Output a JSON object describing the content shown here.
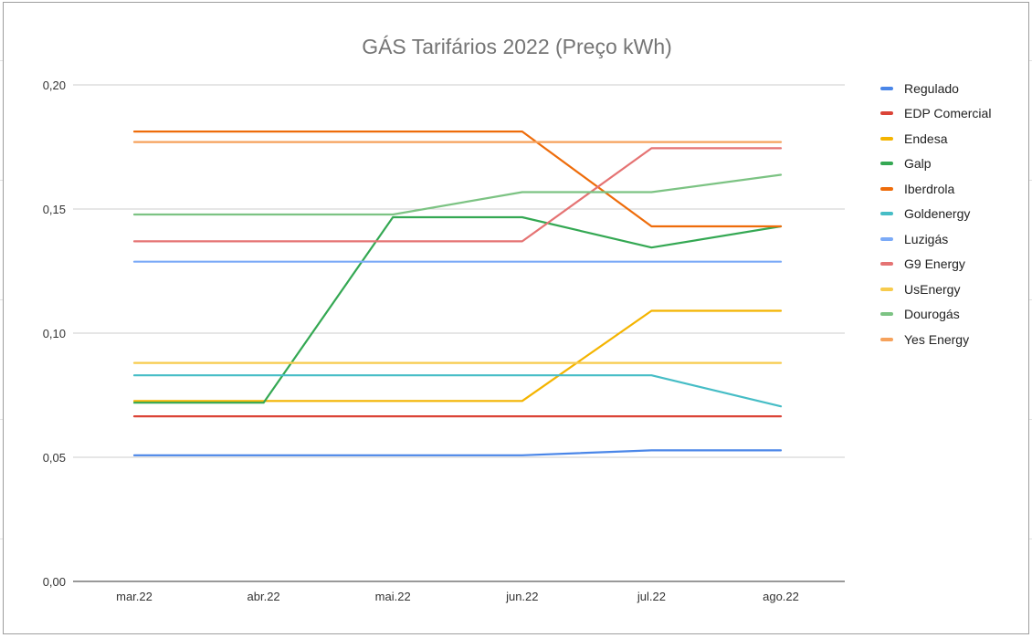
{
  "chart_data": {
    "type": "line",
    "title": "GÁS Tarifários 2022 (Preço kWh)",
    "xlabel": "",
    "ylabel": "",
    "categories": [
      "mar.22",
      "abr.22",
      "mai.22",
      "jun.22",
      "jul.22",
      "ago.22"
    ],
    "ylim": [
      0,
      0.2
    ],
    "yticks": [
      {
        "value": 0.0,
        "label": "0,00"
      },
      {
        "value": 0.05,
        "label": "0,05"
      },
      {
        "value": 0.1,
        "label": "0,10"
      },
      {
        "value": 0.15,
        "label": "0,15"
      },
      {
        "value": 0.2,
        "label": "0,20"
      }
    ],
    "grid": true,
    "legend_position": "right",
    "series": [
      {
        "name": "Regulado",
        "color": "#4a86e8",
        "values": [
          0.0508,
          0.0508,
          0.0508,
          0.0508,
          0.0528,
          0.0528
        ]
      },
      {
        "name": "EDP Comercial",
        "color": "#db4437",
        "values": [
          0.0665,
          0.0665,
          0.0665,
          0.0665,
          0.0665,
          0.0665
        ]
      },
      {
        "name": "Endesa",
        "color": "#f4b400",
        "values": [
          0.0727,
          0.0727,
          0.0727,
          0.0727,
          0.109,
          0.109
        ]
      },
      {
        "name": "Galp",
        "color": "#34a853",
        "values": [
          0.072,
          0.072,
          0.1467,
          0.1467,
          0.1345,
          0.143
        ]
      },
      {
        "name": "Iberdrola",
        "color": "#ee6c0a",
        "values": [
          0.1812,
          0.1812,
          0.1812,
          0.1812,
          0.143,
          0.143
        ]
      },
      {
        "name": "Goldenergy",
        "color": "#46bdc6",
        "values": [
          0.083,
          0.083,
          0.083,
          0.083,
          0.083,
          0.0705
        ]
      },
      {
        "name": "Luzigás",
        "color": "#7baaf7",
        "values": [
          0.1288,
          0.1288,
          0.1288,
          0.1288,
          0.1288,
          0.1288
        ]
      },
      {
        "name": "G9 Energy",
        "color": "#e57373",
        "values": [
          0.137,
          0.137,
          0.137,
          0.137,
          0.1745,
          0.1745
        ]
      },
      {
        "name": "UsEnergy",
        "color": "#f7cb4d",
        "values": [
          0.088,
          0.088,
          0.088,
          0.088,
          0.088,
          0.088
        ]
      },
      {
        "name": "Dourogás",
        "color": "#7cc383",
        "values": [
          0.1478,
          0.1478,
          0.1478,
          0.1568,
          0.1568,
          0.1638
        ]
      },
      {
        "name": "Yes Energy",
        "color": "#f6a25c",
        "values": [
          0.177,
          0.177,
          0.177,
          0.177,
          0.177,
          0.177
        ]
      }
    ]
  }
}
